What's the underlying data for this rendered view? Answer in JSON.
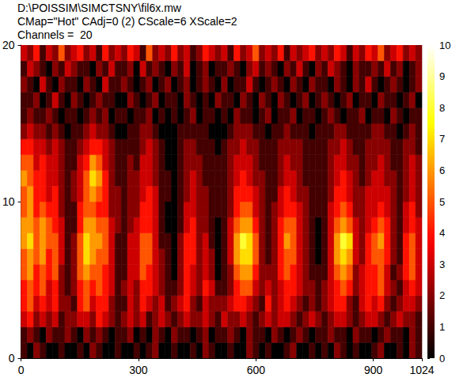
{
  "chart_data": {
    "type": "heatmap",
    "title": "D:\\POISSIM\\SIMCTSNY\\fil6x.mw",
    "subtitle": "CMap=\"Hot\" CAdj=0 (2) CScale=6 XScale=2",
    "annotation": "Channels =  20",
    "xlim": [
      0,
      1024
    ],
    "xticks": [
      0,
      300,
      600,
      900,
      1024
    ],
    "ylim": [
      0,
      20
    ],
    "yticks": [
      0,
      10,
      20
    ],
    "grid": false,
    "x_bins": [
      0,
      16,
      32,
      48,
      64,
      80,
      96,
      112,
      128,
      144,
      160,
      176,
      192,
      208,
      224,
      240,
      256,
      272,
      288,
      304,
      320,
      336,
      352,
      368,
      384,
      400,
      416,
      432,
      448,
      464,
      480,
      496,
      512,
      528,
      544,
      560,
      576,
      592,
      608,
      624,
      640,
      656,
      672,
      688,
      704,
      720,
      736,
      752,
      768,
      784,
      800,
      816,
      832,
      848,
      864,
      880,
      896,
      912,
      928,
      944,
      960,
      976,
      992,
      1008,
      1024
    ],
    "y_bins": [
      0,
      1,
      2,
      3,
      4,
      5,
      6,
      7,
      8,
      9,
      10,
      11,
      12,
      13,
      14,
      15,
      16,
      17,
      18,
      19,
      20
    ],
    "cells": [
      [
        1,
        0,
        2,
        1,
        0,
        0,
        1,
        0,
        0,
        1,
        0,
        2,
        1,
        0,
        0,
        1,
        0,
        0,
        1,
        0,
        1,
        2,
        0,
        0,
        1,
        0,
        0,
        1,
        0,
        2,
        1,
        0,
        0,
        1,
        0,
        0,
        2,
        1,
        0,
        1,
        0,
        0,
        1,
        2,
        0,
        0,
        1,
        0,
        1,
        0,
        2,
        1,
        0,
        1,
        0,
        0,
        1,
        2,
        0,
        0,
        1,
        0,
        2,
        1
      ],
      [
        1,
        2,
        1,
        0,
        2,
        1,
        1,
        2,
        1,
        0,
        2,
        1,
        2,
        1,
        0,
        1,
        1,
        2,
        0,
        1,
        0,
        2,
        1,
        0,
        2,
        1,
        1,
        0,
        1,
        2,
        0,
        1,
        1,
        2,
        1,
        0,
        2,
        1,
        1,
        0,
        2,
        1,
        0,
        1,
        2,
        1,
        0,
        1,
        1,
        2,
        1,
        1,
        0,
        2,
        1,
        1,
        0,
        1,
        2,
        1,
        1,
        0,
        2,
        1
      ],
      [
        3,
        4,
        2,
        3,
        2,
        3,
        1,
        2,
        2,
        3,
        3,
        2,
        4,
        3,
        2,
        1,
        2,
        3,
        2,
        3,
        1,
        2,
        3,
        2,
        1,
        2,
        3,
        2,
        2,
        3,
        2,
        1,
        3,
        2,
        2,
        3,
        2,
        1,
        2,
        3,
        2,
        3,
        3,
        2,
        1,
        2,
        3,
        2,
        1,
        2,
        3,
        3,
        2,
        1,
        2,
        3,
        3,
        2,
        1,
        2,
        3,
        2,
        2,
        1
      ],
      [
        4,
        5,
        3,
        4,
        3,
        4,
        2,
        2,
        1,
        4,
        5,
        3,
        4,
        4,
        2,
        1,
        1,
        3,
        2,
        4,
        3,
        2,
        3,
        1,
        2,
        3,
        4,
        2,
        1,
        3,
        2,
        2,
        2,
        3,
        4,
        4,
        3,
        2,
        1,
        4,
        2,
        3,
        4,
        3,
        2,
        1,
        2,
        1,
        2,
        3,
        4,
        4,
        2,
        1,
        3,
        4,
        3,
        4,
        2,
        1,
        2,
        3,
        3,
        2
      ],
      [
        4,
        5,
        4,
        5,
        3,
        4,
        2,
        1,
        2,
        4,
        5,
        4,
        5,
        4,
        3,
        1,
        2,
        3,
        2,
        4,
        4,
        3,
        2,
        1,
        1,
        2,
        4,
        3,
        2,
        4,
        3,
        1,
        1,
        2,
        4,
        5,
        5,
        3,
        2,
        3,
        2,
        3,
        4,
        4,
        3,
        2,
        2,
        1,
        2,
        3,
        4,
        5,
        4,
        2,
        3,
        4,
        4,
        5,
        3,
        2,
        1,
        3,
        4,
        3
      ],
      [
        5,
        6,
        4,
        5,
        4,
        5,
        2,
        1,
        2,
        5,
        6,
        5,
        5,
        4,
        3,
        1,
        1,
        3,
        3,
        5,
        4,
        3,
        2,
        1,
        0,
        2,
        4,
        3,
        2,
        3,
        2,
        0,
        1,
        2,
        5,
        6,
        6,
        4,
        2,
        2,
        2,
        4,
        5,
        4,
        3,
        2,
        1,
        1,
        1,
        3,
        5,
        6,
        5,
        2,
        3,
        4,
        4,
        5,
        3,
        1,
        2,
        4,
        5,
        3
      ],
      [
        5,
        6,
        5,
        6,
        4,
        5,
        3,
        1,
        2,
        5,
        7,
        6,
        5,
        5,
        3,
        1,
        1,
        3,
        3,
        5,
        5,
        3,
        2,
        1,
        0,
        2,
        4,
        4,
        2,
        3,
        2,
        0,
        1,
        3,
        6,
        7,
        7,
        5,
        2,
        1,
        2,
        4,
        5,
        5,
        3,
        2,
        1,
        0,
        1,
        3,
        6,
        7,
        6,
        3,
        2,
        4,
        5,
        5,
        4,
        2,
        1,
        4,
        5,
        3
      ],
      [
        6,
        7,
        5,
        6,
        5,
        5,
        3,
        1,
        2,
        5,
        7,
        6,
        6,
        5,
        3,
        1,
        1,
        3,
        3,
        5,
        5,
        3,
        1,
        1,
        0,
        2,
        4,
        4,
        2,
        3,
        1,
        0,
        1,
        3,
        6,
        8,
        7,
        5,
        2,
        1,
        2,
        4,
        6,
        5,
        3,
        2,
        1,
        0,
        1,
        3,
        6,
        8,
        7,
        3,
        2,
        4,
        5,
        6,
        4,
        2,
        1,
        4,
        5,
        3
      ],
      [
        6,
        6,
        5,
        6,
        5,
        4,
        3,
        1,
        1,
        4,
        6,
        6,
        5,
        5,
        3,
        2,
        1,
        2,
        3,
        4,
        4,
        3,
        1,
        0,
        0,
        1,
        3,
        4,
        2,
        2,
        1,
        0,
        1,
        3,
        5,
        6,
        6,
        4,
        2,
        1,
        2,
        4,
        5,
        5,
        3,
        2,
        1,
        0,
        1,
        3,
        5,
        6,
        5,
        3,
        2,
        3,
        4,
        5,
        4,
        2,
        1,
        3,
        4,
        3
      ],
      [
        5,
        6,
        4,
        5,
        4,
        4,
        2,
        1,
        1,
        4,
        5,
        5,
        4,
        4,
        2,
        2,
        1,
        2,
        2,
        4,
        4,
        3,
        1,
        0,
        0,
        1,
        3,
        3,
        2,
        2,
        1,
        1,
        1,
        2,
        4,
        5,
        5,
        3,
        2,
        1,
        2,
        3,
        4,
        4,
        3,
        2,
        1,
        1,
        1,
        3,
        4,
        5,
        4,
        2,
        2,
        3,
        3,
        4,
        3,
        2,
        1,
        3,
        4,
        2
      ],
      [
        5,
        6,
        4,
        4,
        3,
        4,
        2,
        1,
        2,
        3,
        5,
        6,
        5,
        4,
        2,
        2,
        1,
        2,
        2,
        3,
        4,
        3,
        1,
        1,
        0,
        1,
        2,
        3,
        2,
        2,
        1,
        1,
        1,
        2,
        4,
        4,
        4,
        3,
        2,
        1,
        1,
        3,
        4,
        3,
        2,
        2,
        1,
        1,
        1,
        2,
        4,
        4,
        3,
        2,
        2,
        3,
        3,
        3,
        3,
        2,
        1,
        2,
        3,
        2
      ],
      [
        6,
        5,
        4,
        4,
        3,
        3,
        2,
        1,
        2,
        3,
        5,
        7,
        6,
        4,
        2,
        1,
        1,
        2,
        2,
        3,
        3,
        2,
        1,
        1,
        0,
        1,
        2,
        3,
        2,
        1,
        1,
        1,
        1,
        2,
        3,
        4,
        3,
        2,
        2,
        1,
        1,
        2,
        3,
        3,
        2,
        1,
        1,
        1,
        1,
        2,
        3,
        4,
        3,
        2,
        1,
        2,
        3,
        3,
        2,
        2,
        1,
        2,
        3,
        2
      ],
      [
        5,
        5,
        3,
        4,
        3,
        3,
        2,
        1,
        1,
        3,
        4,
        6,
        5,
        3,
        2,
        1,
        1,
        2,
        1,
        3,
        3,
        2,
        1,
        0,
        0,
        1,
        2,
        2,
        2,
        1,
        1,
        1,
        1,
        2,
        3,
        3,
        3,
        2,
        1,
        1,
        1,
        2,
        3,
        2,
        2,
        1,
        1,
        1,
        1,
        2,
        3,
        3,
        2,
        2,
        1,
        2,
        2,
        3,
        2,
        1,
        1,
        2,
        3,
        2
      ],
      [
        4,
        4,
        3,
        3,
        2,
        3,
        2,
        1,
        1,
        2,
        3,
        4,
        4,
        3,
        2,
        1,
        1,
        1,
        1,
        2,
        3,
        2,
        1,
        0,
        0,
        1,
        2,
        2,
        1,
        1,
        1,
        0,
        1,
        2,
        2,
        3,
        2,
        2,
        1,
        1,
        1,
        2,
        2,
        2,
        2,
        1,
        1,
        1,
        1,
        2,
        2,
        3,
        2,
        1,
        1,
        2,
        2,
        2,
        2,
        1,
        1,
        2,
        2,
        1
      ],
      [
        2,
        3,
        2,
        2,
        1,
        2,
        1,
        0,
        1,
        1,
        2,
        3,
        2,
        2,
        1,
        0,
        0,
        1,
        1,
        2,
        2,
        1,
        0,
        0,
        0,
        1,
        1,
        1,
        1,
        1,
        0,
        0,
        0,
        1,
        2,
        2,
        2,
        1,
        1,
        0,
        1,
        1,
        2,
        1,
        1,
        1,
        0,
        1,
        1,
        1,
        2,
        2,
        1,
        1,
        1,
        1,
        2,
        2,
        1,
        1,
        0,
        1,
        2,
        1
      ],
      [
        1,
        2,
        1,
        1,
        2,
        1,
        0,
        1,
        1,
        0,
        1,
        2,
        1,
        2,
        0,
        1,
        1,
        0,
        1,
        1,
        2,
        0,
        1,
        0,
        1,
        0,
        1,
        2,
        0,
        1,
        1,
        0,
        1,
        0,
        2,
        1,
        1,
        0,
        1,
        2,
        0,
        1,
        1,
        2,
        0,
        1,
        1,
        0,
        1,
        2,
        1,
        0,
        1,
        1,
        2,
        0,
        1,
        1,
        0,
        2,
        1,
        0,
        1,
        1
      ],
      [
        1,
        1,
        2,
        0,
        1,
        3,
        1,
        0,
        2,
        1,
        0,
        1,
        2,
        1,
        1,
        0,
        0,
        2,
        1,
        0,
        1,
        2,
        0,
        1,
        1,
        0,
        2,
        1,
        0,
        1,
        0,
        2,
        1,
        1,
        0,
        2,
        1,
        0,
        2,
        1,
        0,
        2,
        1,
        0,
        1,
        2,
        0,
        1,
        2,
        1,
        0,
        1,
        2,
        0,
        1,
        1,
        0,
        2,
        1,
        1,
        0,
        1,
        2,
        0
      ],
      [
        2,
        1,
        0,
        3,
        1,
        0,
        2,
        1,
        1,
        0,
        2,
        1,
        0,
        3,
        1,
        1,
        2,
        1,
        0,
        1,
        2,
        0,
        1,
        2,
        0,
        1,
        2,
        0,
        1,
        2,
        1,
        0,
        2,
        0,
        1,
        1,
        3,
        1,
        0,
        1,
        2,
        1,
        0,
        2,
        1,
        0,
        2,
        1,
        1,
        0,
        2,
        1,
        0,
        2,
        1,
        3,
        1,
        0,
        1,
        2,
        1,
        0,
        1,
        2
      ],
      [
        1,
        3,
        2,
        1,
        0,
        2,
        1,
        3,
        2,
        1,
        1,
        0,
        2,
        1,
        3,
        1,
        1,
        2,
        0,
        3,
        1,
        2,
        1,
        0,
        2,
        1,
        3,
        0,
        1,
        2,
        0,
        1,
        1,
        2,
        1,
        0,
        2,
        3,
        1,
        2,
        1,
        0,
        2,
        1,
        3,
        1,
        0,
        2,
        1,
        3,
        2,
        1,
        0,
        2,
        1,
        1,
        2,
        1,
        3,
        1,
        2,
        0,
        1,
        2
      ],
      [
        3,
        2,
        4,
        1,
        3,
        2,
        5,
        2,
        3,
        4,
        2,
        3,
        1,
        4,
        2,
        3,
        2,
        4,
        3,
        1,
        5,
        2,
        3,
        2,
        4,
        2,
        3,
        1,
        2,
        4,
        3,
        2,
        3,
        1,
        4,
        2,
        3,
        5,
        2,
        3,
        2,
        4,
        1,
        3,
        2,
        3,
        4,
        2,
        3,
        2,
        4,
        3,
        1,
        3,
        2,
        4,
        3,
        5,
        2,
        3,
        4,
        2,
        3,
        2
      ]
    ],
    "colorbar": {
      "range": [
        0,
        10
      ],
      "ticks": [
        0,
        1,
        2,
        3,
        4,
        5,
        6,
        7,
        8,
        9,
        10
      ]
    }
  }
}
